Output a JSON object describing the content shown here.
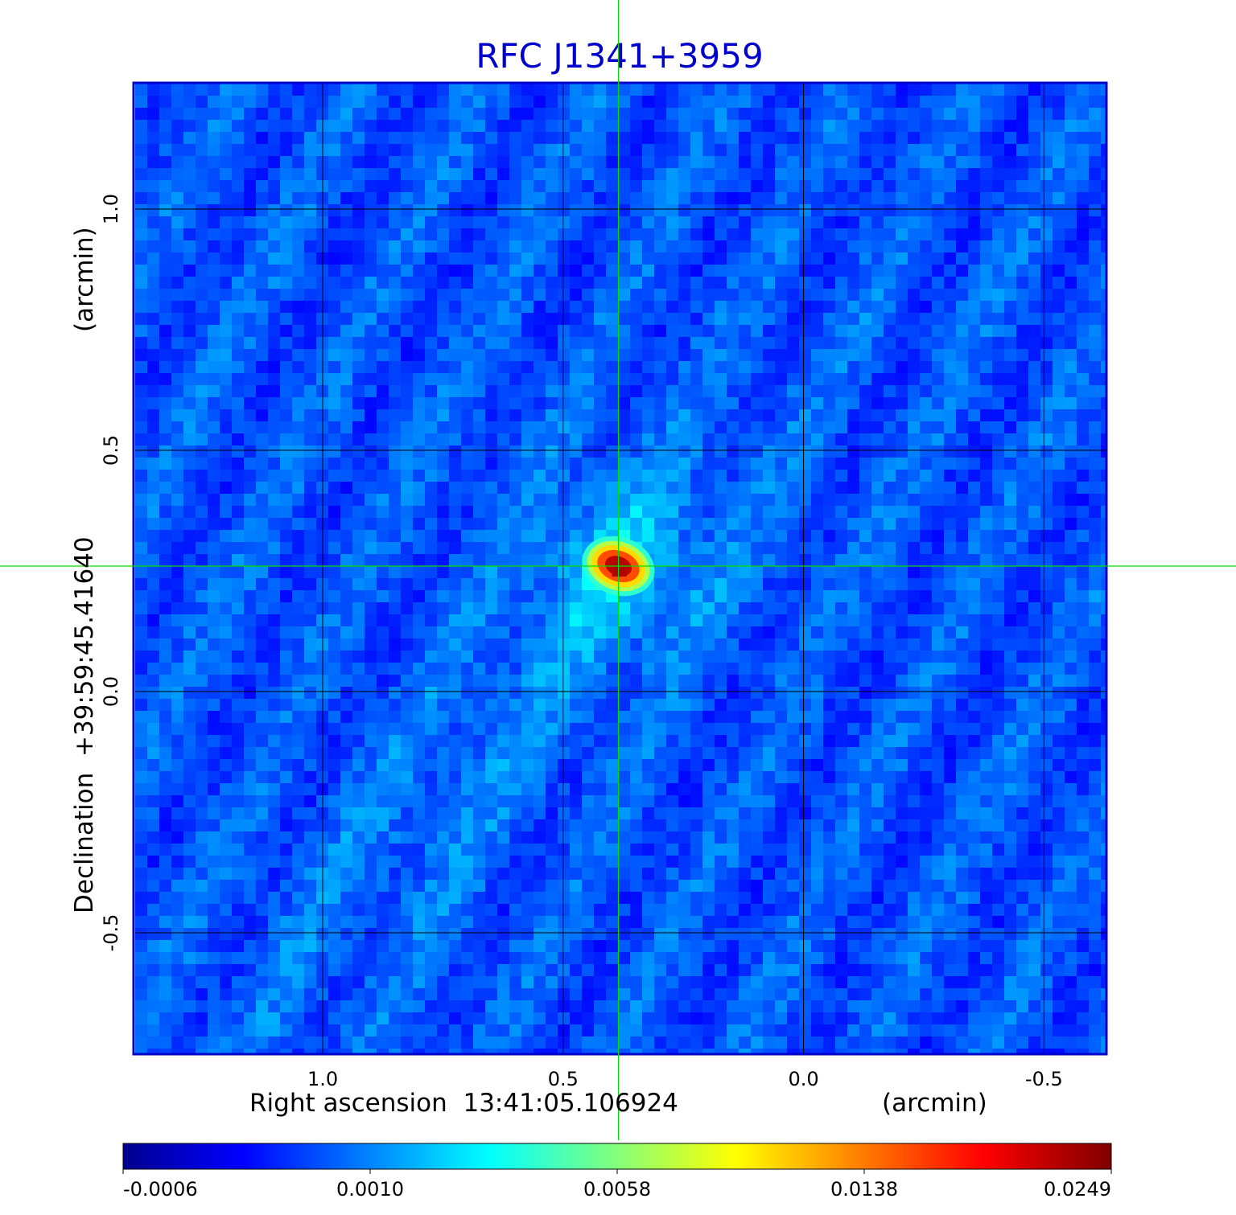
{
  "chart_data": {
    "type": "heatmap",
    "title": "RFC J1341+3959",
    "xlabel": "Right ascension  13:41:05.106924",
    "xunit": "(arcmin)",
    "ylabel": "Declination  +39:59:45.41640",
    "yunit": "(arcmin)",
    "x_ticks": [
      "1.0",
      "0.5",
      "0.0",
      "-0.5"
    ],
    "y_ticks": [
      "1.0",
      "0.5",
      "0.0",
      "-0.5"
    ],
    "x_tick_values": [
      1.0,
      0.5,
      0.0,
      -0.5
    ],
    "y_tick_values": [
      1.0,
      0.5,
      0.0,
      -0.5
    ],
    "xlim": [
      1.39,
      -0.63
    ],
    "ylim": [
      -0.75,
      1.26
    ],
    "grid": true,
    "crosshair": {
      "x": 0.385,
      "y": 0.26
    },
    "source_peak": {
      "x": 0.385,
      "y": 0.26,
      "value": 0.0249
    },
    "colorbar": {
      "ticks": [
        "-0.0006",
        "0.0010",
        "0.0058",
        "0.0138",
        "0.0249"
      ],
      "tick_values": [
        -0.0006,
        0.001,
        0.0058,
        0.0138,
        0.0249
      ],
      "colormap": "jet",
      "stops": [
        "#00008f",
        "#0000ff",
        "#00ffff",
        "#ffff00",
        "#ff0000",
        "#800000"
      ]
    },
    "colors": {
      "title": "#0000cc",
      "frame": "#0000cc",
      "grid": "#000000",
      "crosshair": "#00e000"
    }
  }
}
